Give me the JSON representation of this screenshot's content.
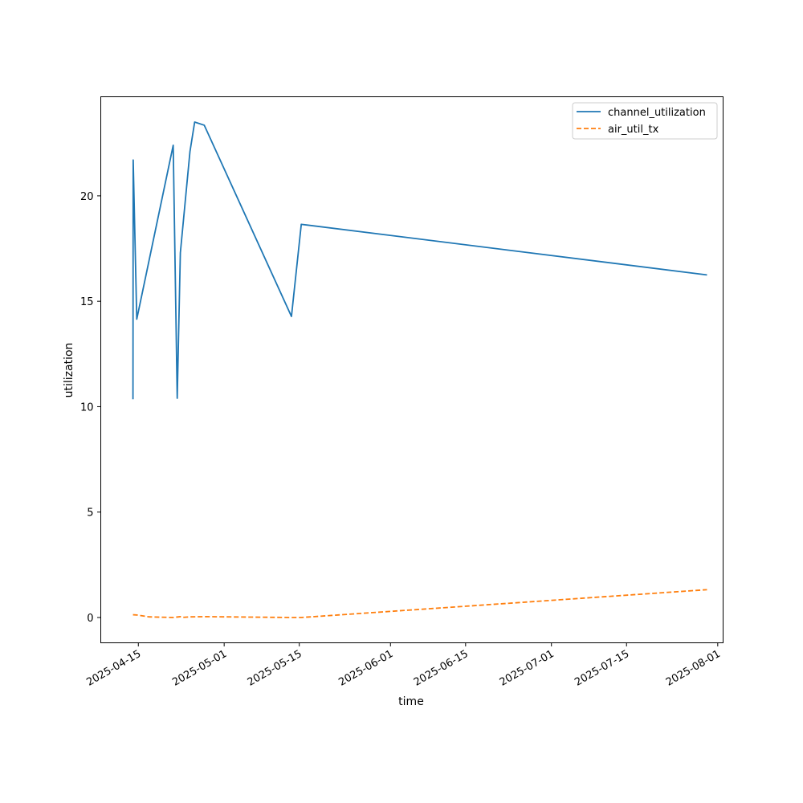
{
  "chart_data": {
    "type": "line",
    "xlabel": "time",
    "ylabel": "utilization",
    "ylim": [
      -1.2,
      24.7
    ],
    "xlim": [
      "2025-04-08",
      "2025-08-02"
    ],
    "y_ticks": [
      0,
      5,
      10,
      15,
      20
    ],
    "x_ticks": [
      "2025-04-15",
      "2025-05-01",
      "2025-05-15",
      "2025-06-01",
      "2025-06-15",
      "2025-07-01",
      "2025-07-15",
      "2025-08-01"
    ],
    "legend_position": "top-right",
    "grid": false,
    "series": [
      {
        "name": "channel_utilization",
        "color": "#1f77b4",
        "dash": "solid",
        "points": [
          {
            "x": "2025-04-14T00:00",
            "y": 10.35
          },
          {
            "x": "2025-04-14T01:00",
            "y": 21.7
          },
          {
            "x": "2025-04-14T17:00",
            "y": 14.15
          },
          {
            "x": "2025-04-21T12:00",
            "y": 22.4
          },
          {
            "x": "2025-04-22T06:00",
            "y": 10.4
          },
          {
            "x": "2025-04-22T20:00",
            "y": 17.3
          },
          {
            "x": "2025-04-24T15:00",
            "y": 22.1
          },
          {
            "x": "2025-04-25T12:00",
            "y": 23.5
          },
          {
            "x": "2025-04-27T07:00",
            "y": 23.35
          },
          {
            "x": "2025-05-13T13:00",
            "y": 14.28
          },
          {
            "x": "2025-05-15T09:00",
            "y": 18.65
          },
          {
            "x": "2025-07-30T00:00",
            "y": 16.25
          }
        ]
      },
      {
        "name": "air_util_tx",
        "color": "#ff7f0e",
        "dash": "dashed",
        "points": [
          {
            "x": "2025-04-14T00:00",
            "y": 0.13
          },
          {
            "x": "2025-04-14T17:00",
            "y": 0.12
          },
          {
            "x": "2025-04-17T00:00",
            "y": 0.03
          },
          {
            "x": "2025-04-21T12:00",
            "y": 0.0
          },
          {
            "x": "2025-04-22T20:00",
            "y": 0.04
          },
          {
            "x": "2025-04-23T12:00",
            "y": 0.01
          },
          {
            "x": "2025-04-24T15:00",
            "y": 0.03
          },
          {
            "x": "2025-04-27T07:00",
            "y": 0.04
          },
          {
            "x": "2025-05-13T13:00",
            "y": 0.0
          },
          {
            "x": "2025-05-15T09:00",
            "y": 0.0
          },
          {
            "x": "2025-07-30T00:00",
            "y": 1.32
          }
        ]
      }
    ]
  }
}
